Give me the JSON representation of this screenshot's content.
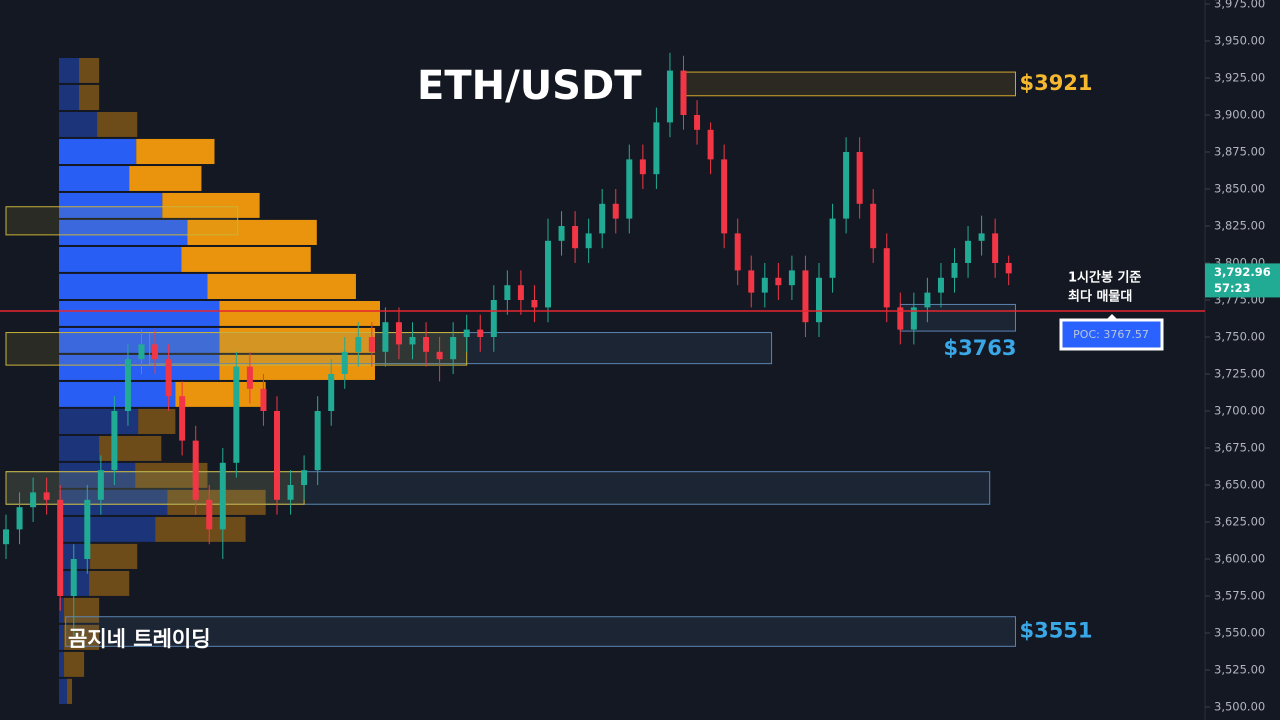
{
  "chart_data": {
    "type": "candlestick",
    "title": "ETH/USDT",
    "watermark": "곰지네 트레이딩",
    "up_color": "#22ab94",
    "down_color": "#f23645",
    "open": [
      3610,
      3620,
      3635,
      3645,
      3640,
      3575,
      3600,
      3640,
      3660,
      3700,
      3735,
      3745,
      3735,
      3710,
      3680,
      3640,
      3620,
      3665,
      3730,
      3715,
      3700,
      3640,
      3650,
      3660,
      3700,
      3725,
      3740,
      3750,
      3740,
      3760,
      3745,
      3750,
      3740,
      3735,
      3750,
      3755,
      3750,
      3775,
      3785,
      3775,
      3770,
      3815,
      3825,
      3810,
      3820,
      3840,
      3830,
      3870,
      3860,
      3895,
      3930,
      3900,
      3890,
      3870,
      3820,
      3795,
      3780,
      3790,
      3785,
      3795,
      3760,
      3790,
      3830,
      3875,
      3840,
      3810,
      3770,
      3755,
      3770,
      3780,
      3790,
      3800,
      3815,
      3820,
      3800
    ],
    "high": [
      3630,
      3645,
      3655,
      3655,
      3650,
      3610,
      3650,
      3670,
      3710,
      3745,
      3755,
      3755,
      3745,
      3720,
      3690,
      3650,
      3675,
      3740,
      3740,
      3725,
      3710,
      3660,
      3670,
      3710,
      3735,
      3750,
      3760,
      3760,
      3770,
      3770,
      3760,
      3760,
      3750,
      3760,
      3765,
      3765,
      3785,
      3795,
      3795,
      3785,
      3830,
      3835,
      3835,
      3830,
      3850,
      3850,
      3880,
      3880,
      3905,
      3942,
      3940,
      3910,
      3895,
      3880,
      3830,
      3805,
      3800,
      3800,
      3805,
      3805,
      3800,
      3840,
      3885,
      3885,
      3850,
      3820,
      3780,
      3780,
      3790,
      3800,
      3810,
      3825,
      3832,
      3830,
      3805
    ],
    "low": [
      3600,
      3610,
      3625,
      3630,
      3565,
      3548,
      3590,
      3630,
      3650,
      3690,
      3725,
      3725,
      3700,
      3670,
      3630,
      3610,
      3600,
      3655,
      3705,
      3690,
      3630,
      3630,
      3640,
      3650,
      3690,
      3715,
      3730,
      3730,
      3730,
      3735,
      3735,
      3730,
      3720,
      3725,
      3740,
      3740,
      3740,
      3765,
      3765,
      3760,
      3760,
      3805,
      3800,
      3800,
      3810,
      3820,
      3820,
      3850,
      3850,
      3885,
      3890,
      3880,
      3860,
      3810,
      3785,
      3770,
      3770,
      3775,
      3775,
      3750,
      3750,
      3780,
      3820,
      3830,
      3800,
      3760,
      3745,
      3745,
      3760,
      3770,
      3780,
      3790,
      3805,
      3790,
      3785
    ],
    "close": [
      3620,
      3635,
      3645,
      3640,
      3575,
      3600,
      3640,
      3660,
      3700,
      3735,
      3745,
      3735,
      3710,
      3680,
      3640,
      3620,
      3665,
      3730,
      3715,
      3700,
      3640,
      3650,
      3660,
      3700,
      3725,
      3740,
      3750,
      3740,
      3760,
      3745,
      3750,
      3740,
      3735,
      3750,
      3755,
      3750,
      3775,
      3785,
      3775,
      3770,
      3815,
      3825,
      3810,
      3820,
      3840,
      3830,
      3870,
      3860,
      3895,
      3930,
      3900,
      3890,
      3870,
      3820,
      3795,
      3780,
      3790,
      3785,
      3795,
      3760,
      3790,
      3830,
      3875,
      3840,
      3810,
      3770,
      3755,
      3770,
      3780,
      3790,
      3800,
      3815,
      3820,
      3800,
      3793
    ],
    "ylim": [
      3500,
      3975
    ],
    "yticks": [
      {
        "value": 3500,
        "label": "3,500.00"
      },
      {
        "value": 3525,
        "label": "3,525.00"
      },
      {
        "value": 3550,
        "label": "3,550.00"
      },
      {
        "value": 3575,
        "label": "3,575.00"
      },
      {
        "value": 3600,
        "label": "3,600.00"
      },
      {
        "value": 3625,
        "label": "3,625.00"
      },
      {
        "value": 3650,
        "label": "3,650.00"
      },
      {
        "value": 3675,
        "label": "3,675.00"
      },
      {
        "value": 3700,
        "label": "3,700.00"
      },
      {
        "value": 3725,
        "label": "3,725.00"
      },
      {
        "value": 3750,
        "label": "3,750.00"
      },
      {
        "value": 3775,
        "label": "3,775.00"
      },
      {
        "value": 3800,
        "label": "3,800.00"
      },
      {
        "value": 3825,
        "label": "3,825.00"
      },
      {
        "value": 3850,
        "label": "3,850.00"
      },
      {
        "value": 3875,
        "label": "3,875.00"
      },
      {
        "value": 3900,
        "label": "3,900.00"
      },
      {
        "value": 3925,
        "label": "3,925.00"
      },
      {
        "value": 3950,
        "label": "3,950.00"
      },
      {
        "value": 3975,
        "label": "3,975.00"
      }
    ],
    "volume_profile": {
      "bins": [
        3501.4,
        3519.7,
        3537.9,
        3556.2,
        3574.4,
        3592.6,
        3610.9,
        3629.1,
        3647.4,
        3665.6,
        3683.8,
        3702.1,
        3720.3,
        3738.6,
        3756.8,
        3775.0,
        3793.3,
        3811.5,
        3829.8,
        3848.0,
        3866.2,
        3884.5,
        3902.7,
        3921.0,
        3939.2
      ],
      "buy": [
        8,
        5,
        5,
        5,
        30,
        31,
        96,
        108,
        76,
        40,
        79,
        116,
        160,
        160,
        160,
        148,
        122,
        128,
        103,
        70,
        77,
        38,
        20,
        20
      ],
      "sell": [
        5,
        20,
        35,
        35,
        40,
        47,
        90,
        98,
        72,
        62,
        37,
        90,
        155,
        155,
        160,
        148,
        129,
        129,
        97,
        72,
        78,
        40,
        20,
        20
      ],
      "buy_color": "#2962ff",
      "sell_color": "#f59a0c",
      "value_area": [
        3702.1,
        3884.5
      ]
    },
    "zones": [
      {
        "top": 3929,
        "bottom": 3913,
        "start": 50,
        "end": 74.5,
        "color": "#d4a72c",
        "label": "$3921",
        "label_color": "#f5b82e",
        "label_side": "right"
      },
      {
        "top": 3772,
        "bottom": 3754,
        "start": 66,
        "end": 74.5,
        "color": "#5b84b1",
        "label": "$3763",
        "label_color": "#3aa8e6",
        "label_side": "below"
      },
      {
        "top": 3753,
        "bottom": 3732,
        "start": 10.6,
        "end": 56.5,
        "color": "#5b84b1"
      },
      {
        "top": 3659,
        "bottom": 3637,
        "start": 0,
        "end": 72.6,
        "color": "#5b84b1"
      },
      {
        "top": 3561,
        "bottom": 3541,
        "start": 4.4,
        "end": 74.5,
        "color": "#5b84b1",
        "label": "$3551",
        "label_color": "#3aa8e6",
        "label_side": "right"
      },
      {
        "top": 3838,
        "bottom": 3819,
        "start": 0,
        "end": 17.1,
        "color": "#c9b33a"
      },
      {
        "top": 3753,
        "bottom": 3731,
        "start": 0,
        "end": 34,
        "color": "#c9b33a"
      },
      {
        "top": 3659,
        "bottom": 3637,
        "start": 0,
        "end": 22,
        "color": "#c9b33a"
      }
    ],
    "poc": {
      "value": 3767.57,
      "label": "POC: 3767.57",
      "color": "#e5262f",
      "note": [
        "1시간봉 기준",
        "최다 매물대"
      ]
    },
    "last_price": {
      "value": 3792.96,
      "label": "3,792.96",
      "countdown": "57:23"
    }
  }
}
